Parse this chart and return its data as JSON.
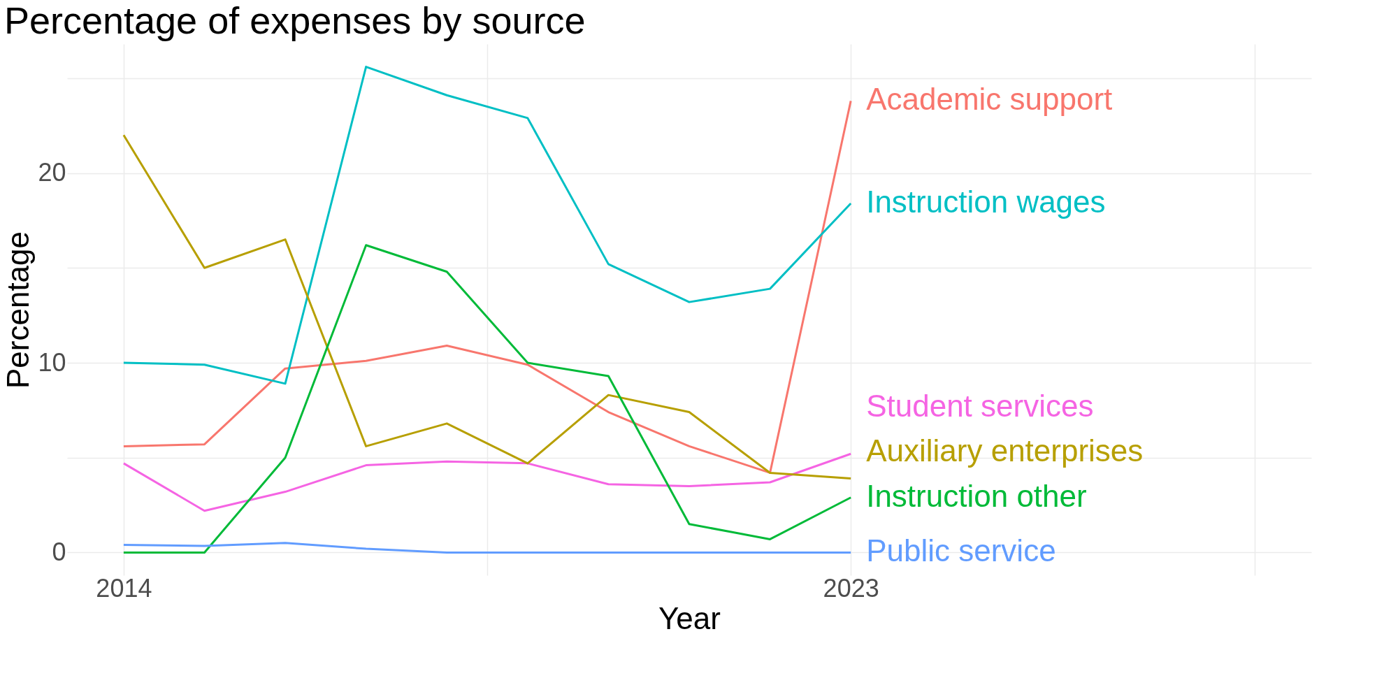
{
  "chart_data": {
    "type": "line",
    "title": "Percentage of expenses by source",
    "xlabel": "Year",
    "ylabel": "Percentage",
    "x": [
      2014,
      2015,
      2016,
      2017,
      2018,
      2019,
      2020,
      2021,
      2022,
      2023
    ],
    "series": [
      {
        "name": "Academic support",
        "color": "#f8766d",
        "values": [
          5.6,
          5.7,
          9.7,
          10.1,
          10.9,
          9.9,
          7.4,
          5.6,
          4.2,
          23.8
        ]
      },
      {
        "name": "Instruction wages",
        "color": "#00bfc4",
        "values": [
          10.0,
          9.9,
          8.9,
          25.6,
          24.1,
          22.9,
          15.2,
          13.2,
          13.9,
          18.4
        ]
      },
      {
        "name": "Student services",
        "color": "#f564e3",
        "values": [
          4.7,
          2.2,
          3.2,
          4.6,
          4.8,
          4.7,
          3.6,
          3.5,
          3.7,
          5.2
        ]
      },
      {
        "name": "Auxiliary enterprises",
        "color": "#b79f00",
        "values": [
          22.0,
          15.0,
          16.5,
          5.6,
          6.8,
          4.7,
          8.3,
          7.4,
          4.2,
          3.9
        ]
      },
      {
        "name": "Instruction other",
        "color": "#00ba38",
        "values": [
          0,
          0,
          5.0,
          16.2,
          14.8,
          10.0,
          9.3,
          1.5,
          0.7,
          2.9
        ]
      },
      {
        "name": "Public service",
        "color": "#619cff",
        "values": [
          0.4,
          0.35,
          0.5,
          0.2,
          0,
          0,
          0,
          0,
          0,
          0
        ]
      }
    ],
    "xlim": [
      2013.3,
      2028.7
    ],
    "xticks": [
      2014,
      {
        "value": 2018.5,
        "label": null
      },
      2023,
      {
        "value": 2028,
        "label": null
      }
    ],
    "ylim": [
      -1.2,
      26.8
    ],
    "yticks": [
      0,
      {
        "value": 5,
        "label": null
      },
      10,
      {
        "value": 15,
        "label": null
      },
      20,
      {
        "value": 25,
        "label": null
      }
    ],
    "grid": true,
    "legend": false,
    "line_style": "solid",
    "marker": "none"
  }
}
